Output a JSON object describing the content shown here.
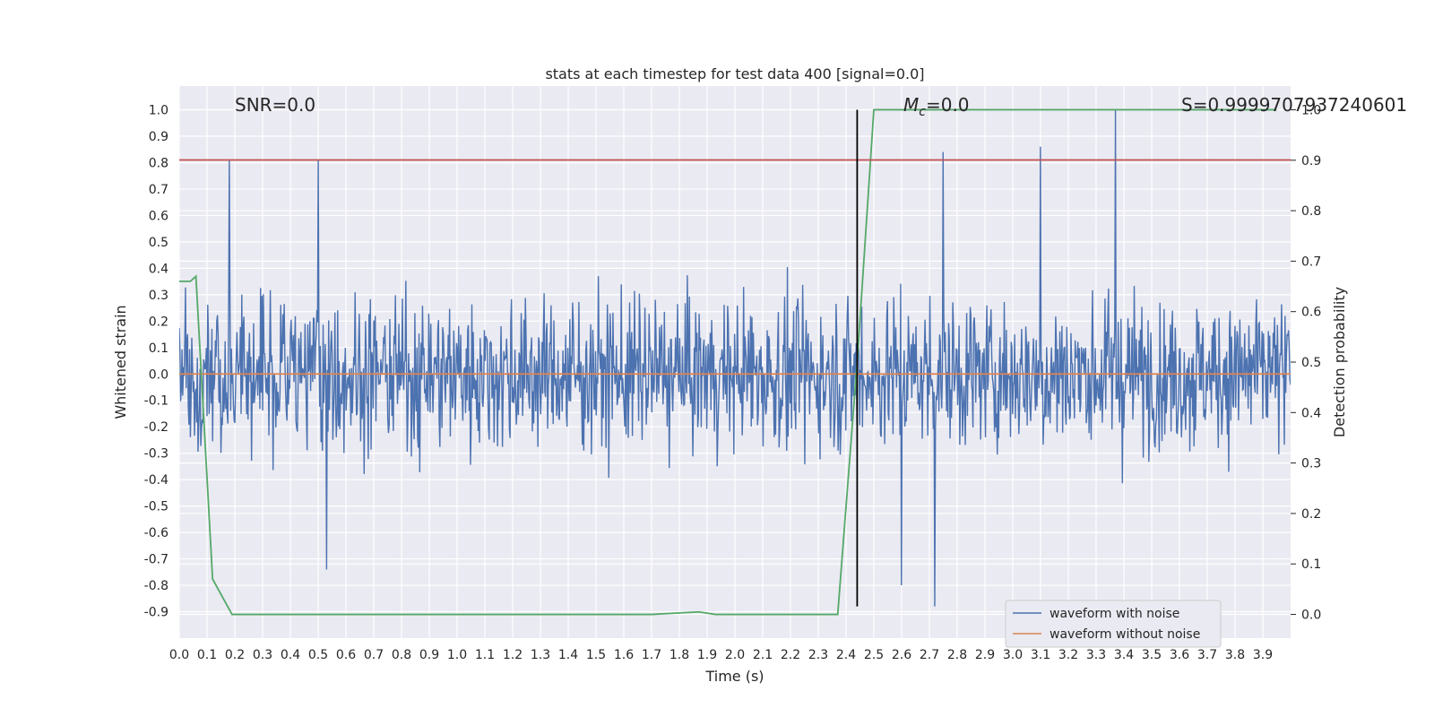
{
  "chart_data": {
    "type": "line",
    "title": "stats at each timestep for test data 400 [signal=0.0]",
    "xlabel": "Time (s)",
    "ylabel": "Whitened strain",
    "y2label": "Detection probability",
    "xlim": [
      0.0,
      4.0
    ],
    "ylim": [
      -1.0,
      1.09
    ],
    "y2lim": [
      -0.047,
      1.047
    ],
    "grid": true,
    "legend_position": "lower right",
    "x_ticks": [
      "0.0",
      "0.1",
      "0.2",
      "0.3",
      "0.4",
      "0.5",
      "0.6",
      "0.7",
      "0.8",
      "0.9",
      "1.0",
      "1.1",
      "1.2",
      "1.3",
      "1.4",
      "1.5",
      "1.6",
      "1.7",
      "1.8",
      "1.9",
      "2.0",
      "2.1",
      "2.2",
      "2.3",
      "2.4",
      "2.5",
      "2.6",
      "2.7",
      "2.8",
      "2.9",
      "3.0",
      "3.1",
      "3.2",
      "3.3",
      "3.4",
      "3.5",
      "3.6",
      "3.7",
      "3.8",
      "3.9"
    ],
    "y_ticks": [
      "1.0",
      "0.9",
      "0.8",
      "0.7",
      "0.6",
      "0.5",
      "0.4",
      "0.3",
      "0.2",
      "0.1",
      "0.0",
      "-0.1",
      "-0.2",
      "-0.3",
      "-0.4",
      "-0.5",
      "-0.6",
      "-0.7",
      "-0.8",
      "-0.9"
    ],
    "y2_ticks": [
      "1.0",
      "0.9",
      "0.8",
      "0.7",
      "0.6",
      "0.5",
      "0.4",
      "0.3",
      "0.2",
      "0.1",
      "0.0"
    ],
    "annotations": {
      "snr": "SNR=0.0",
      "mc": "=0.0",
      "mc_symbol": "M",
      "mc_sub": "c",
      "s": "S=0.9999707937240601"
    },
    "noise": {
      "seed": 400,
      "count": 1600,
      "spike_peaks": [
        {
          "x": 0.18,
          "y": 0.81
        },
        {
          "x": 0.5,
          "y": 0.81
        },
        {
          "x": 2.72,
          "y": -0.88
        },
        {
          "x": 2.75,
          "y": 0.84
        },
        {
          "x": 3.1,
          "y": 0.86
        },
        {
          "x": 3.37,
          "y": 1.0
        },
        {
          "x": 0.53,
          "y": -0.74
        },
        {
          "x": 2.6,
          "y": -0.8
        }
      ]
    },
    "series": [
      {
        "name": "waveform with noise",
        "color": "#4c72b0",
        "axis": "left",
        "kind": "noise",
        "amplitude": 0.36
      },
      {
        "name": "waveform without noise",
        "color": "#dd8452",
        "axis": "left",
        "x": [
          0.0,
          4.0
        ],
        "y": [
          0.0,
          0.0
        ]
      },
      {
        "color": "#55a868",
        "axis": "right",
        "x": [
          0.0,
          0.01,
          0.02,
          0.04,
          0.06,
          0.12,
          0.19,
          0.5,
          1.0,
          1.5,
          1.7,
          1.87,
          1.93,
          2.2,
          2.37,
          2.44,
          2.5,
          2.8,
          3.95
        ],
        "y": [
          0.66,
          0.66,
          0.66,
          0.66,
          0.67,
          0.07,
          0.0,
          0.0,
          0.0,
          0.0,
          0.0,
          0.005,
          0.0,
          0.0,
          0.0,
          0.5,
          1.0,
          1.0,
          1.0
        ]
      },
      {
        "color": "#c44e52",
        "axis": "left",
        "x": [
          0.0,
          4.0
        ],
        "y": [
          0.81,
          0.81
        ]
      },
      {
        "color": "#000000",
        "axis": "left",
        "x": [
          2.44,
          2.44
        ],
        "y": [
          -0.88,
          1.0
        ]
      }
    ]
  }
}
